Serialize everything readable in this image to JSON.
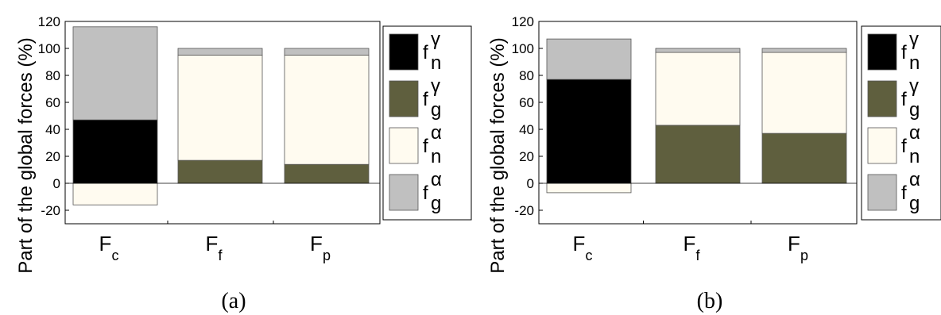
{
  "chart_data": [
    {
      "type": "bar",
      "stacked": true,
      "caption": "(a)",
      "ylabel": "Part of the global forces (%)",
      "ylim": [
        -30,
        120
      ],
      "yticks": [
        "-20",
        "0",
        "20",
        "40",
        "60",
        "80",
        "100",
        "120"
      ],
      "categories": [
        {
          "main": "F",
          "sub": "c"
        },
        {
          "main": "F",
          "sub": "f"
        },
        {
          "main": "F",
          "sub": "p"
        }
      ],
      "series": [
        {
          "key": "fn_gamma",
          "color": "#000000",
          "values": [
            47,
            0,
            0
          ]
        },
        {
          "key": "fg_gamma",
          "color": "#5f5f3e",
          "values": [
            0,
            17,
            14
          ]
        },
        {
          "key": "fn_alpha",
          "color": "#fffbf0",
          "values": [
            -16,
            78,
            81
          ]
        },
        {
          "key": "fg_alpha",
          "color": "#c0c0c0",
          "values": [
            69,
            5,
            5
          ]
        }
      ],
      "legend": [
        {
          "base": "f",
          "sup": "γ",
          "sub": "n",
          "color": "#000000"
        },
        {
          "base": "f",
          "sup": "γ",
          "sub": "g",
          "color": "#5f5f3e"
        },
        {
          "base": "f",
          "sup": "α",
          "sub": "n",
          "color": "#fffbf0"
        },
        {
          "base": "f",
          "sup": "α",
          "sub": "g",
          "color": "#c0c0c0"
        }
      ]
    },
    {
      "type": "bar",
      "stacked": true,
      "caption": "(b)",
      "ylabel": "Part of the global forces (%)",
      "ylim": [
        -30,
        120
      ],
      "yticks": [
        "-20",
        "0",
        "20",
        "40",
        "60",
        "80",
        "100",
        "120"
      ],
      "categories": [
        {
          "main": "F",
          "sub": "c"
        },
        {
          "main": "F",
          "sub": "f"
        },
        {
          "main": "F",
          "sub": "p"
        }
      ],
      "series": [
        {
          "key": "fn_gamma",
          "color": "#000000",
          "values": [
            77,
            0,
            0
          ]
        },
        {
          "key": "fg_gamma",
          "color": "#5f5f3e",
          "values": [
            0,
            43,
            37
          ]
        },
        {
          "key": "fn_alpha",
          "color": "#fffbf0",
          "values": [
            -7,
            54,
            60
          ]
        },
        {
          "key": "fg_alpha",
          "color": "#c0c0c0",
          "values": [
            30,
            3,
            3
          ]
        }
      ],
      "legend": [
        {
          "base": "f",
          "sup": "γ",
          "sub": "n",
          "color": "#000000"
        },
        {
          "base": "f",
          "sup": "γ",
          "sub": "g",
          "color": "#5f5f3e"
        },
        {
          "base": "f",
          "sup": "α",
          "sub": "n",
          "color": "#fffbf0"
        },
        {
          "base": "f",
          "sup": "α",
          "sub": "g",
          "color": "#c0c0c0"
        }
      ]
    }
  ]
}
